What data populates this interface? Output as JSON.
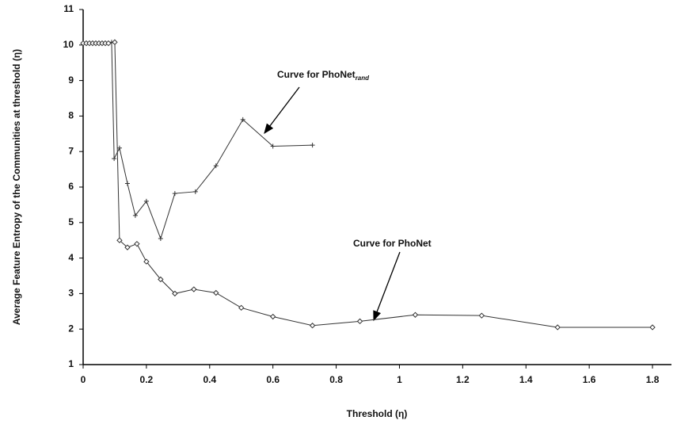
{
  "chart_data": {
    "type": "line",
    "xlabel": "Threshold (η)",
    "ylabel": "Average Feature Entropy of the Communities at threshold (η)",
    "annotations": [
      {
        "text": "Curve for PhoNet",
        "subscript": "rand"
      },
      {
        "text": "Curve for PhoNet"
      }
    ],
    "series": [
      {
        "marker": "plus",
        "color": "#333333",
        "x": [
          0,
          0.01,
          0.02,
          0.03,
          0.04,
          0.05,
          0.06,
          0.07,
          0.08,
          0.09,
          0.098,
          0.115,
          0.14,
          0.165,
          0.2,
          0.245,
          0.29,
          0.355,
          0.42,
          0.505,
          0.6,
          0.725
        ],
        "values": [
          10.05,
          10.05,
          10.05,
          10.05,
          10.05,
          10.05,
          10.05,
          10.05,
          10.05,
          10.08,
          6.8,
          7.1,
          6.1,
          5.2,
          5.6,
          4.55,
          5.82,
          5.87,
          6.6,
          7.9,
          7.15,
          7.18
        ]
      },
      {
        "marker": "diamond",
        "color": "#333333",
        "x": [
          0,
          0.01,
          0.02,
          0.03,
          0.04,
          0.05,
          0.06,
          0.07,
          0.08,
          0.1,
          0.115,
          0.14,
          0.17,
          0.2,
          0.245,
          0.29,
          0.35,
          0.42,
          0.5,
          0.6,
          0.725,
          0.875,
          1.05,
          1.26,
          1.5,
          1.8
        ],
        "values": [
          10.05,
          10.05,
          10.05,
          10.05,
          10.05,
          10.05,
          10.05,
          10.05,
          10.05,
          10.08,
          4.5,
          4.3,
          4.4,
          3.9,
          3.4,
          3.0,
          3.12,
          3.02,
          2.6,
          2.35,
          2.1,
          2.22,
          2.4,
          2.38,
          2.05,
          2.05
        ]
      }
    ],
    "xlim": [
      0,
      1.86
    ],
    "xticks": [
      0,
      0.2,
      0.4,
      0.6,
      0.8,
      1,
      1.2,
      1.4,
      1.6,
      1.8
    ],
    "ylim": [
      1,
      11
    ],
    "yticks": [
      1,
      2,
      3,
      4,
      5,
      6,
      7,
      8,
      9,
      10,
      11
    ],
    "grid": false
  }
}
